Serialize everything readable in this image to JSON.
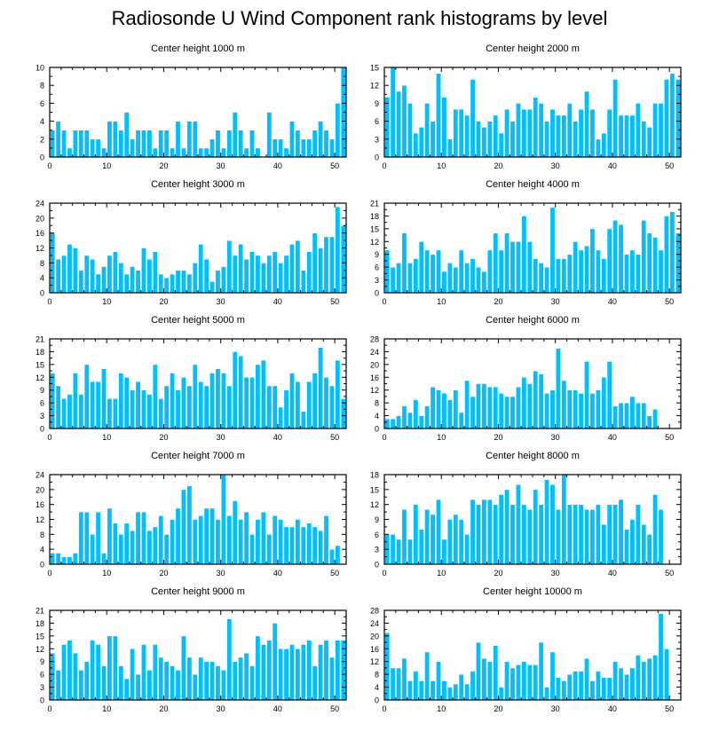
{
  "title": "Radiosonde U Wind Component rank histograms by level",
  "colors": {
    "bar": "#00BFFF",
    "bar_edge": "#ffffff",
    "axis": "#000000"
  },
  "chart_data": [
    {
      "type": "bar",
      "title": "Center height 1000 m",
      "x": [
        0,
        1,
        2,
        3,
        4,
        5,
        6,
        7,
        8,
        9,
        10,
        11,
        12,
        13,
        14,
        15,
        16,
        17,
        18,
        19,
        20,
        21,
        22,
        23,
        24,
        25,
        26,
        27,
        28,
        29,
        30,
        31,
        32,
        33,
        34,
        35,
        36,
        37,
        38,
        39,
        40,
        41,
        42,
        43,
        44,
        45,
        46,
        47,
        48,
        49,
        50,
        51
      ],
      "values": [
        3,
        4,
        3,
        1,
        3,
        3,
        3,
        2,
        2,
        1,
        4,
        4,
        3,
        5,
        2,
        3,
        3,
        3,
        1,
        3,
        3,
        1,
        4,
        1,
        4,
        4,
        1,
        1,
        2,
        3,
        1,
        3,
        5,
        3,
        1,
        3,
        1,
        0,
        5,
        2,
        2,
        1,
        4,
        3,
        2,
        2,
        3,
        4,
        3,
        2,
        6,
        10
      ],
      "xlim": [
        0,
        52
      ],
      "ylim": [
        0,
        10
      ],
      "yticks": [
        0,
        2,
        4,
        6,
        8,
        10
      ],
      "xticks": [
        0,
        10,
        20,
        30,
        40,
        50
      ]
    },
    {
      "type": "bar",
      "title": "Center height 2000 m",
      "x": [
        0,
        1,
        2,
        3,
        4,
        5,
        6,
        7,
        8,
        9,
        10,
        11,
        12,
        13,
        14,
        15,
        16,
        17,
        18,
        19,
        20,
        21,
        22,
        23,
        24,
        25,
        26,
        27,
        28,
        29,
        30,
        31,
        32,
        33,
        34,
        35,
        36,
        37,
        38,
        39,
        40,
        41,
        42,
        43,
        44,
        45,
        46,
        47,
        48,
        49,
        50,
        51
      ],
      "values": [
        10,
        15,
        11,
        12,
        9,
        4,
        5,
        9,
        6,
        14,
        10,
        3,
        8,
        8,
        7,
        13,
        6,
        5,
        6,
        7,
        4,
        8,
        6,
        9,
        8,
        8,
        10,
        9,
        6,
        8,
        7,
        7,
        9,
        6,
        8,
        11,
        8,
        3,
        4,
        8,
        13,
        7,
        7,
        7,
        9,
        6,
        5,
        9,
        9,
        13,
        14,
        13
      ],
      "xlim": [
        0,
        52
      ],
      "ylim": [
        0,
        15
      ],
      "yticks": [
        0,
        3,
        6,
        9,
        12,
        15
      ],
      "xticks": [
        0,
        10,
        20,
        30,
        40,
        50
      ]
    },
    {
      "type": "bar",
      "title": "Center height 3000 m",
      "x": [
        0,
        1,
        2,
        3,
        4,
        5,
        6,
        7,
        8,
        9,
        10,
        11,
        12,
        13,
        14,
        15,
        16,
        17,
        18,
        19,
        20,
        21,
        22,
        23,
        24,
        25,
        26,
        27,
        28,
        29,
        30,
        31,
        32,
        33,
        34,
        35,
        36,
        37,
        38,
        39,
        40,
        41,
        42,
        43,
        44,
        45,
        46,
        47,
        48,
        49,
        50,
        51
      ],
      "values": [
        16,
        9,
        10,
        13,
        12,
        6,
        10,
        9,
        5,
        7,
        10,
        11,
        8,
        5,
        7,
        6,
        12,
        9,
        11,
        5,
        4,
        5,
        6,
        6,
        5,
        8,
        13,
        9,
        3,
        6,
        7,
        14,
        10,
        13,
        9,
        11,
        10,
        8,
        10,
        11,
        8,
        10,
        13,
        14,
        6,
        11,
        16,
        12,
        15,
        15,
        23,
        18
      ],
      "xlim": [
        0,
        52
      ],
      "ylim": [
        0,
        24
      ],
      "yticks": [
        0,
        4,
        8,
        12,
        16,
        20,
        24
      ],
      "xticks": [
        0,
        10,
        20,
        30,
        40,
        50
      ]
    },
    {
      "type": "bar",
      "title": "Center height 4000 m",
      "x": [
        0,
        1,
        2,
        3,
        4,
        5,
        6,
        7,
        8,
        9,
        10,
        11,
        12,
        13,
        14,
        15,
        16,
        17,
        18,
        19,
        20,
        21,
        22,
        23,
        24,
        25,
        26,
        27,
        28,
        29,
        30,
        31,
        32,
        33,
        34,
        35,
        36,
        37,
        38,
        39,
        40,
        41,
        42,
        43,
        44,
        45,
        46,
        47,
        48,
        49,
        50,
        51
      ],
      "values": [
        10,
        6,
        7,
        14,
        7,
        8,
        12,
        10,
        9,
        10,
        5,
        7,
        6,
        10,
        7,
        8,
        6,
        5,
        10,
        14,
        10,
        14,
        12,
        12,
        18,
        12,
        8,
        7,
        6,
        20,
        8,
        8,
        9,
        12,
        10,
        11,
        15,
        10,
        8,
        15,
        17,
        16,
        9,
        10,
        9,
        17,
        14,
        13,
        10,
        18,
        19,
        14
      ],
      "xlim": [
        0,
        52
      ],
      "ylim": [
        0,
        21
      ],
      "yticks": [
        0,
        3,
        6,
        9,
        12,
        15,
        18,
        21
      ],
      "xticks": [
        0,
        10,
        20,
        30,
        40,
        50
      ]
    },
    {
      "type": "bar",
      "title": "Center height 5000 m",
      "x": [
        0,
        1,
        2,
        3,
        4,
        5,
        6,
        7,
        8,
        9,
        10,
        11,
        12,
        13,
        14,
        15,
        16,
        17,
        18,
        19,
        20,
        21,
        22,
        23,
        24,
        25,
        26,
        27,
        28,
        29,
        30,
        31,
        32,
        33,
        34,
        35,
        36,
        37,
        38,
        39,
        40,
        41,
        42,
        43,
        44,
        45,
        46,
        47,
        48,
        49,
        50,
        51
      ],
      "values": [
        13,
        10,
        7,
        8,
        13,
        8,
        15,
        11,
        11,
        14,
        7,
        7,
        13,
        12,
        9,
        11,
        9,
        8,
        15,
        7,
        10,
        13,
        9,
        12,
        10,
        15,
        11,
        10,
        13,
        14,
        13,
        10,
        18,
        17,
        12,
        12,
        15,
        16,
        10,
        10,
        5,
        9,
        13,
        11,
        4,
        11,
        13,
        19,
        12,
        10,
        16,
        7
      ],
      "xlim": [
        0,
        52
      ],
      "ylim": [
        0,
        21
      ],
      "yticks": [
        0,
        3,
        6,
        9,
        12,
        15,
        18,
        21
      ],
      "xticks": [
        0,
        10,
        20,
        30,
        40,
        50
      ]
    },
    {
      "type": "bar",
      "title": "Center height 6000 m",
      "x": [
        0,
        1,
        2,
        3,
        4,
        5,
        6,
        7,
        8,
        9,
        10,
        11,
        12,
        13,
        14,
        15,
        16,
        17,
        18,
        19,
        20,
        21,
        22,
        23,
        24,
        25,
        26,
        27,
        28,
        29,
        30,
        31,
        32,
        33,
        34,
        35,
        36,
        37,
        38,
        39,
        40,
        41,
        42,
        43,
        44,
        45,
        46,
        47,
        48,
        49,
        50,
        51
      ],
      "values": [
        3,
        3,
        4,
        7,
        5,
        9,
        4,
        7,
        13,
        12,
        11,
        9,
        12,
        5,
        15,
        10,
        14,
        14,
        13,
        13,
        11,
        10,
        10,
        13,
        16,
        14,
        18,
        17,
        11,
        12,
        25,
        15,
        12,
        12,
        11,
        21,
        11,
        12,
        16,
        21,
        7,
        8,
        8,
        10,
        8,
        8,
        4,
        6,
        0,
        0,
        0,
        0
      ],
      "xlim": [
        0,
        52
      ],
      "ylim": [
        0,
        28
      ],
      "yticks": [
        0,
        4,
        8,
        12,
        16,
        20,
        24,
        28
      ],
      "xticks": [
        0,
        10,
        20,
        30,
        40,
        50
      ]
    },
    {
      "type": "bar",
      "title": "Center height 7000 m",
      "x": [
        0,
        1,
        2,
        3,
        4,
        5,
        6,
        7,
        8,
        9,
        10,
        11,
        12,
        13,
        14,
        15,
        16,
        17,
        18,
        19,
        20,
        21,
        22,
        23,
        24,
        25,
        26,
        27,
        28,
        29,
        30,
        31,
        32,
        33,
        34,
        35,
        36,
        37,
        38,
        39,
        40,
        41,
        42,
        43,
        44,
        45,
        46,
        47,
        48,
        49,
        50,
        51
      ],
      "values": [
        3,
        3,
        2,
        2,
        3,
        14,
        14,
        8,
        14,
        3,
        15,
        11,
        8,
        11,
        9,
        14,
        14,
        9,
        10,
        13,
        8,
        12,
        15,
        20,
        21,
        12,
        13,
        15,
        15,
        12,
        24,
        13,
        17,
        12,
        14,
        8,
        12,
        14,
        8,
        13,
        12,
        10,
        10,
        12,
        10,
        11,
        10,
        9,
        13,
        4,
        5,
        0
      ],
      "xlim": [
        0,
        52
      ],
      "ylim": [
        0,
        24
      ],
      "yticks": [
        0,
        4,
        8,
        12,
        16,
        20,
        24
      ],
      "xticks": [
        0,
        10,
        20,
        30,
        40,
        50
      ]
    },
    {
      "type": "bar",
      "title": "Center height 8000 m",
      "x": [
        0,
        1,
        2,
        3,
        4,
        5,
        6,
        7,
        8,
        9,
        10,
        11,
        12,
        13,
        14,
        15,
        16,
        17,
        18,
        19,
        20,
        21,
        22,
        23,
        24,
        25,
        26,
        27,
        28,
        29,
        30,
        31,
        32,
        33,
        34,
        35,
        36,
        37,
        38,
        39,
        40,
        41,
        42,
        43,
        44,
        45,
        46,
        47,
        48,
        49,
        50,
        51
      ],
      "values": [
        6,
        6,
        5,
        11,
        5,
        12,
        7,
        11,
        10,
        13,
        5,
        9,
        10,
        9,
        6,
        13,
        12,
        13,
        13,
        12,
        14,
        15,
        12,
        16,
        12,
        11,
        15,
        12,
        17,
        16,
        11,
        18,
        12,
        12,
        12,
        11,
        11,
        12,
        8,
        12,
        12,
        13,
        7,
        9,
        12,
        8,
        6,
        14,
        11,
        0,
        0,
        0
      ],
      "xlim": [
        0,
        52
      ],
      "ylim": [
        0,
        18
      ],
      "yticks": [
        0,
        3,
        6,
        9,
        12,
        15,
        18
      ],
      "xticks": [
        0,
        10,
        20,
        30,
        40,
        50
      ]
    },
    {
      "type": "bar",
      "title": "Center height 9000 m",
      "x": [
        0,
        1,
        2,
        3,
        4,
        5,
        6,
        7,
        8,
        9,
        10,
        11,
        12,
        13,
        14,
        15,
        16,
        17,
        18,
        19,
        20,
        21,
        22,
        23,
        24,
        25,
        26,
        27,
        28,
        29,
        30,
        31,
        32,
        33,
        34,
        35,
        36,
        37,
        38,
        39,
        40,
        41,
        42,
        43,
        44,
        45,
        46,
        47,
        48,
        49,
        50,
        51
      ],
      "values": [
        11,
        7,
        13,
        14,
        11,
        7,
        9,
        14,
        13,
        8,
        15,
        15,
        8,
        5,
        12,
        6,
        13,
        7,
        13,
        10,
        9,
        8,
        7,
        15,
        10,
        6,
        10,
        9,
        9,
        8,
        7,
        19,
        9,
        10,
        11,
        8,
        15,
        13,
        14,
        18,
        12,
        12,
        13,
        12,
        13,
        14,
        8,
        13,
        14,
        10,
        14,
        14
      ],
      "xlim": [
        0,
        52
      ],
      "ylim": [
        0,
        21
      ],
      "yticks": [
        0,
        3,
        6,
        9,
        12,
        15,
        18,
        21
      ],
      "xticks": [
        0,
        10,
        20,
        30,
        40,
        50
      ]
    },
    {
      "type": "bar",
      "title": "Center height 10000 m",
      "x": [
        0,
        1,
        2,
        3,
        4,
        5,
        6,
        7,
        8,
        9,
        10,
        11,
        12,
        13,
        14,
        15,
        16,
        17,
        18,
        19,
        20,
        21,
        22,
        23,
        24,
        25,
        26,
        27,
        28,
        29,
        30,
        31,
        32,
        33,
        34,
        35,
        36,
        37,
        38,
        39,
        40,
        41,
        42,
        43,
        44,
        45,
        46,
        47,
        48,
        49,
        50,
        51
      ],
      "values": [
        21,
        10,
        10,
        13,
        6,
        9,
        6,
        15,
        6,
        12,
        6,
        4,
        5,
        8,
        5,
        9,
        18,
        13,
        12,
        17,
        4,
        12,
        10,
        11,
        12,
        11,
        11,
        18,
        4,
        15,
        7,
        6,
        8,
        9,
        9,
        13,
        6,
        9,
        7,
        7,
        12,
        10,
        8,
        10,
        14,
        12,
        13,
        14,
        27,
        16,
        0,
        0
      ],
      "xlim": [
        0,
        52
      ],
      "ylim": [
        0,
        28
      ],
      "yticks": [
        0,
        4,
        8,
        12,
        16,
        20,
        24,
        28
      ],
      "xticks": [
        0,
        10,
        20,
        30,
        40,
        50
      ]
    }
  ]
}
